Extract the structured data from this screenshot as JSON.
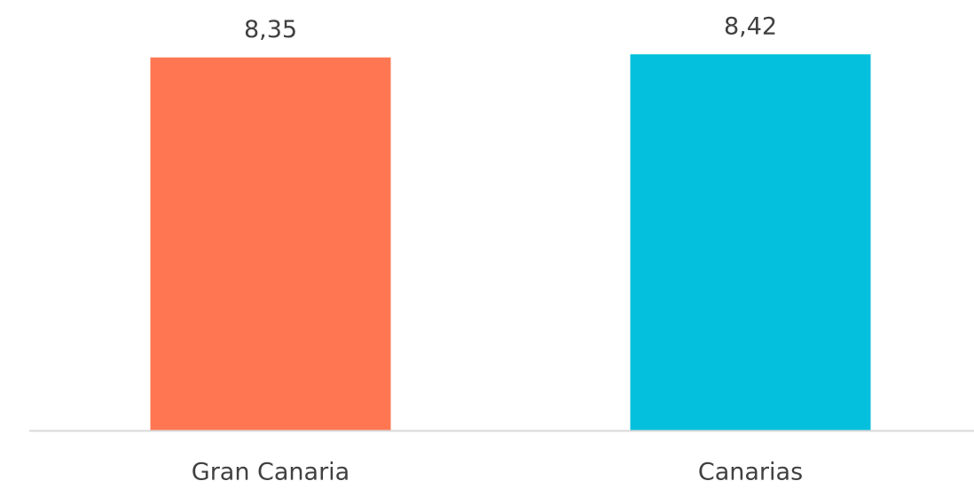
{
  "chart_data": {
    "type": "bar",
    "categories": [
      "Gran Canaria",
      "Canarias"
    ],
    "values": [
      8.35,
      8.42
    ],
    "value_labels": [
      "8,35",
      "8,42"
    ],
    "colors": [
      "#ff7752",
      "#05c0dc"
    ],
    "ylim": [
      0,
      9
    ]
  }
}
